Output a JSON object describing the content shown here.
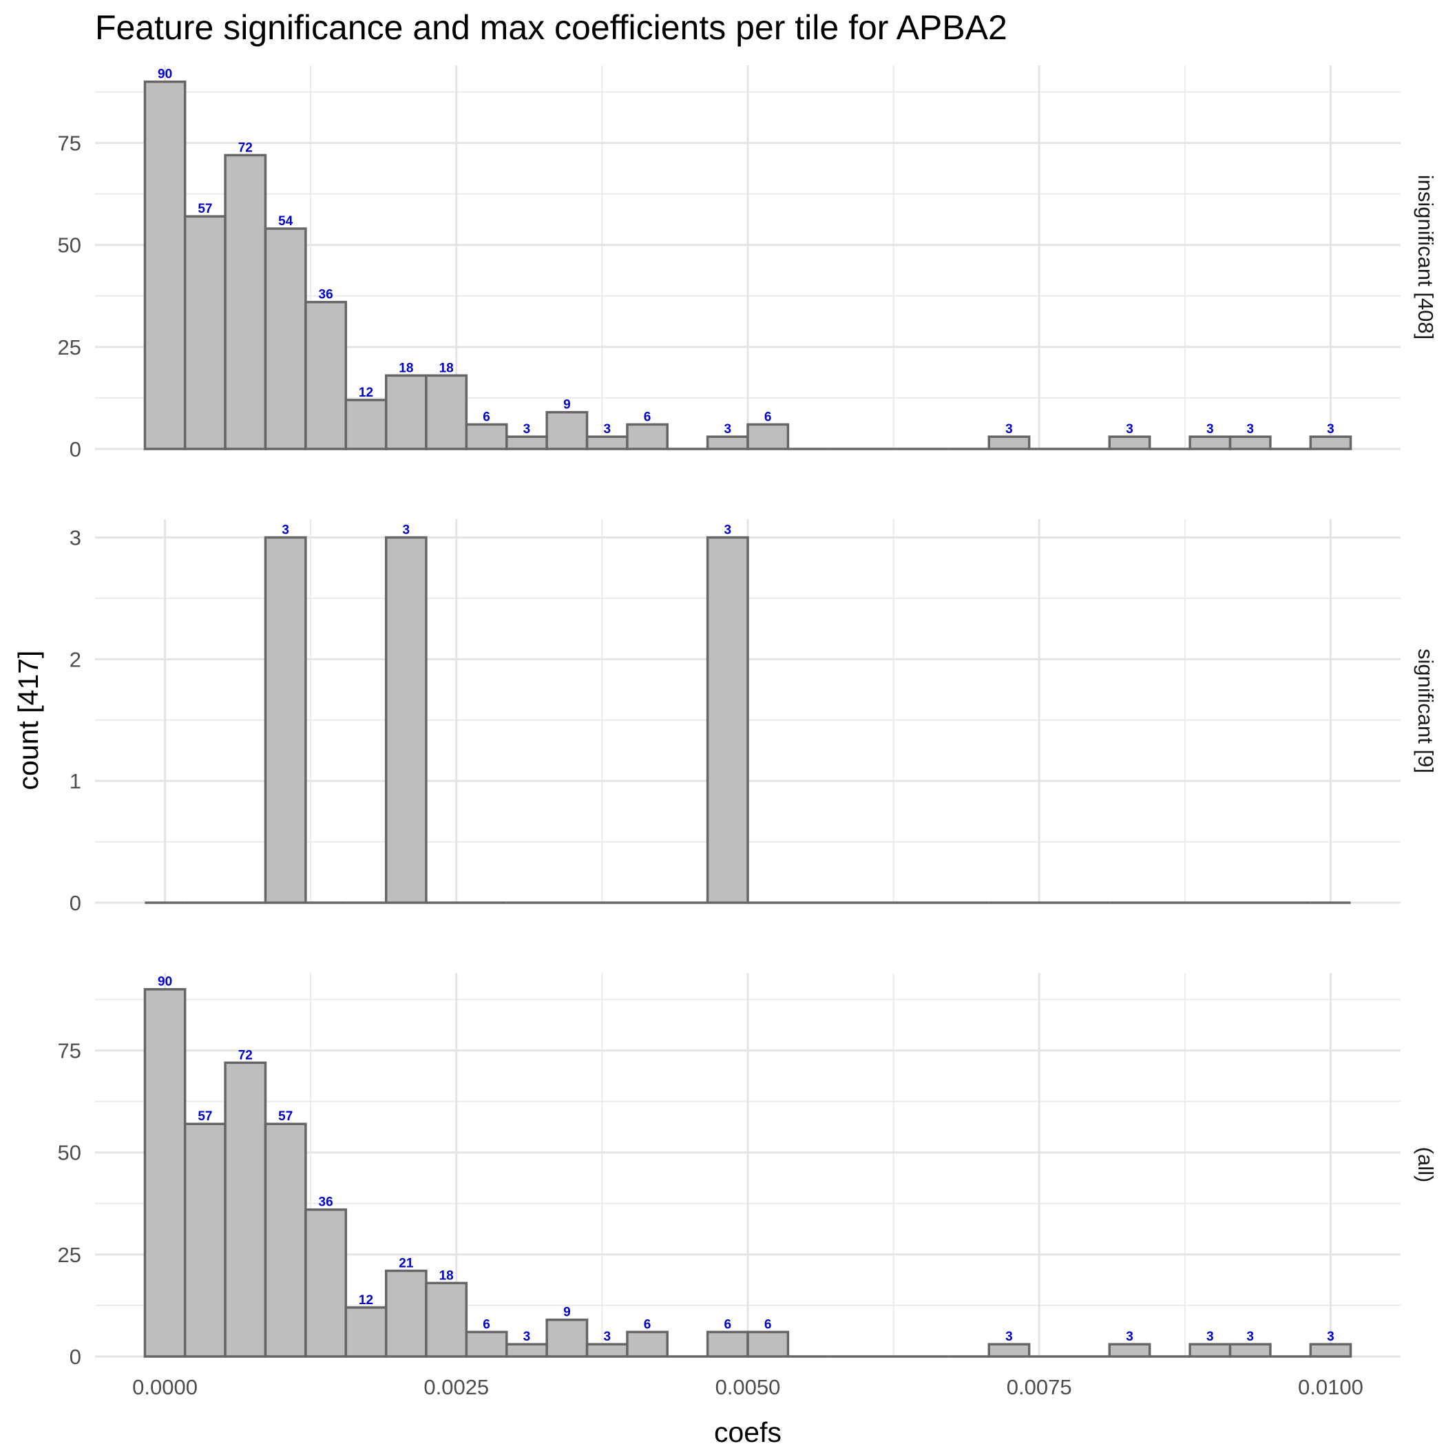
{
  "chart_data": {
    "type": "bar",
    "title": "Feature significance and max coefficients per tile for APBA2",
    "xlabel": "coefs",
    "ylabel": "count [417]",
    "xlim": [
      -0.0006,
      0.0106
    ],
    "x_ticks": [
      0.0,
      0.0025,
      0.005,
      0.0075,
      0.01
    ],
    "x_tick_labels": [
      "0.0000",
      "0.0025",
      "0.0050",
      "0.0075",
      "0.0100"
    ],
    "bin_edges": [
      -0.000172,
      0.000172,
      0.000517,
      0.000862,
      0.001207,
      0.001552,
      0.001897,
      0.002241,
      0.002586,
      0.002931,
      0.003276,
      0.003621,
      0.003966,
      0.00431,
      0.004655,
      0.005,
      0.005345,
      0.00569,
      0.006034,
      0.006379,
      0.006724,
      0.007069,
      0.007414,
      0.007759,
      0.008103,
      0.008448,
      0.008793,
      0.009138,
      0.009483,
      0.009828,
      0.010172
    ],
    "bar_fill": "#bebebe",
    "bar_outline": "#666666",
    "label_color": "#0000cc",
    "grid": true,
    "panels": [
      {
        "strip": "insignificant [408]",
        "ylim": [
          0,
          94
        ],
        "y_ticks": [
          0,
          25,
          50,
          75
        ],
        "y_tick_labels": [
          "0",
          "25",
          "50",
          "75"
        ],
        "counts": [
          90,
          57,
          72,
          54,
          36,
          12,
          18,
          18,
          6,
          3,
          9,
          3,
          6,
          0,
          3,
          6,
          0,
          0,
          0,
          0,
          0,
          3,
          0,
          0,
          3,
          0,
          3,
          3,
          0,
          3
        ]
      },
      {
        "strip": "significant [9]",
        "ylim": [
          0,
          3.15
        ],
        "y_ticks": [
          0,
          1,
          2,
          3
        ],
        "y_tick_labels": [
          "0",
          "1",
          "2",
          "3"
        ],
        "counts": [
          0,
          0,
          0,
          3,
          0,
          0,
          3,
          0,
          0,
          0,
          0,
          0,
          0,
          0,
          3,
          0,
          0,
          0,
          0,
          0,
          0,
          0,
          0,
          0,
          0,
          0,
          0,
          0,
          0,
          0
        ]
      },
      {
        "strip": "(all)",
        "ylim": [
          0,
          94
        ],
        "y_ticks": [
          0,
          25,
          50,
          75
        ],
        "y_tick_labels": [
          "0",
          "25",
          "50",
          "75"
        ],
        "counts": [
          90,
          57,
          72,
          57,
          36,
          12,
          21,
          18,
          6,
          3,
          9,
          3,
          6,
          0,
          6,
          6,
          0,
          0,
          0,
          0,
          0,
          3,
          0,
          0,
          3,
          0,
          3,
          3,
          0,
          3
        ]
      }
    ]
  }
}
